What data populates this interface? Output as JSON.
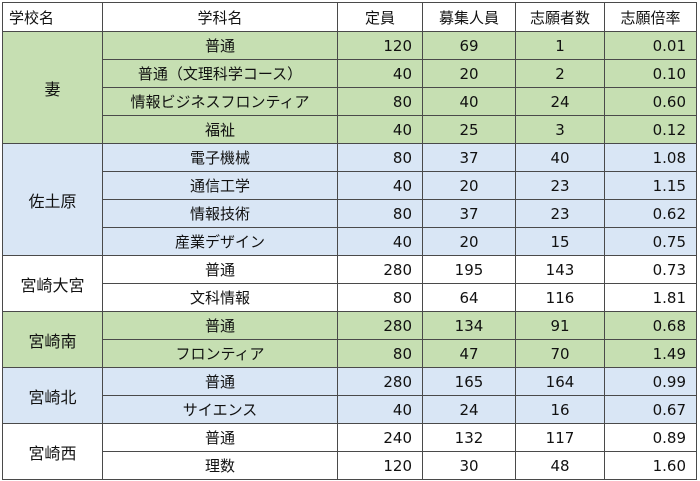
{
  "headers": [
    "学校名",
    "学科名",
    "定員",
    "募集人員",
    "志願者数",
    "志願倍率"
  ],
  "schools": [
    {
      "name": "妻",
      "color": "#c6dfb2",
      "rows": [
        {
          "dept": "普通",
          "capacity": "120",
          "recruit": "69",
          "applicants": "1",
          "ratio": "0.01"
        },
        {
          "dept": "普通（文理科学コース）",
          "capacity": "40",
          "recruit": "20",
          "applicants": "2",
          "ratio": "0.10"
        },
        {
          "dept": "情報ビジネスフロンティア",
          "capacity": "80",
          "recruit": "40",
          "applicants": "24",
          "ratio": "0.60"
        },
        {
          "dept": "福祉",
          "capacity": "40",
          "recruit": "25",
          "applicants": "3",
          "ratio": "0.12"
        }
      ]
    },
    {
      "name": "佐土原",
      "color": "#d9e6f5",
      "rows": [
        {
          "dept": "電子機械",
          "capacity": "80",
          "recruit": "37",
          "applicants": "40",
          "ratio": "1.08"
        },
        {
          "dept": "通信工学",
          "capacity": "40",
          "recruit": "20",
          "applicants": "23",
          "ratio": "1.15"
        },
        {
          "dept": "情報技術",
          "capacity": "80",
          "recruit": "37",
          "applicants": "23",
          "ratio": "0.62"
        },
        {
          "dept": "産業デザイン",
          "capacity": "40",
          "recruit": "20",
          "applicants": "15",
          "ratio": "0.75"
        }
      ]
    },
    {
      "name": "宮崎大宮",
      "color": "#ffffff",
      "rows": [
        {
          "dept": "普通",
          "capacity": "280",
          "recruit": "195",
          "applicants": "143",
          "ratio": "0.73"
        },
        {
          "dept": "文科情報",
          "capacity": "80",
          "recruit": "64",
          "applicants": "116",
          "ratio": "1.81"
        }
      ]
    },
    {
      "name": "宮崎南",
      "color": "#c6dfb2",
      "rows": [
        {
          "dept": "普通",
          "capacity": "280",
          "recruit": "134",
          "applicants": "91",
          "ratio": "0.68"
        },
        {
          "dept": "フロンティア",
          "capacity": "80",
          "recruit": "47",
          "applicants": "70",
          "ratio": "1.49"
        }
      ]
    },
    {
      "name": "宮崎北",
      "color": "#d9e6f5",
      "rows": [
        {
          "dept": "普通",
          "capacity": "280",
          "recruit": "165",
          "applicants": "164",
          "ratio": "0.99"
        },
        {
          "dept": "サイエンス",
          "capacity": "40",
          "recruit": "24",
          "applicants": "16",
          "ratio": "0.67"
        }
      ]
    },
    {
      "name": "宮崎西",
      "color": "#ffffff",
      "rows": [
        {
          "dept": "普通",
          "capacity": "240",
          "recruit": "132",
          "applicants": "117",
          "ratio": "0.89"
        },
        {
          "dept": "理数",
          "capacity": "120",
          "recruit": "30",
          "applicants": "48",
          "ratio": "1.60"
        }
      ]
    }
  ]
}
